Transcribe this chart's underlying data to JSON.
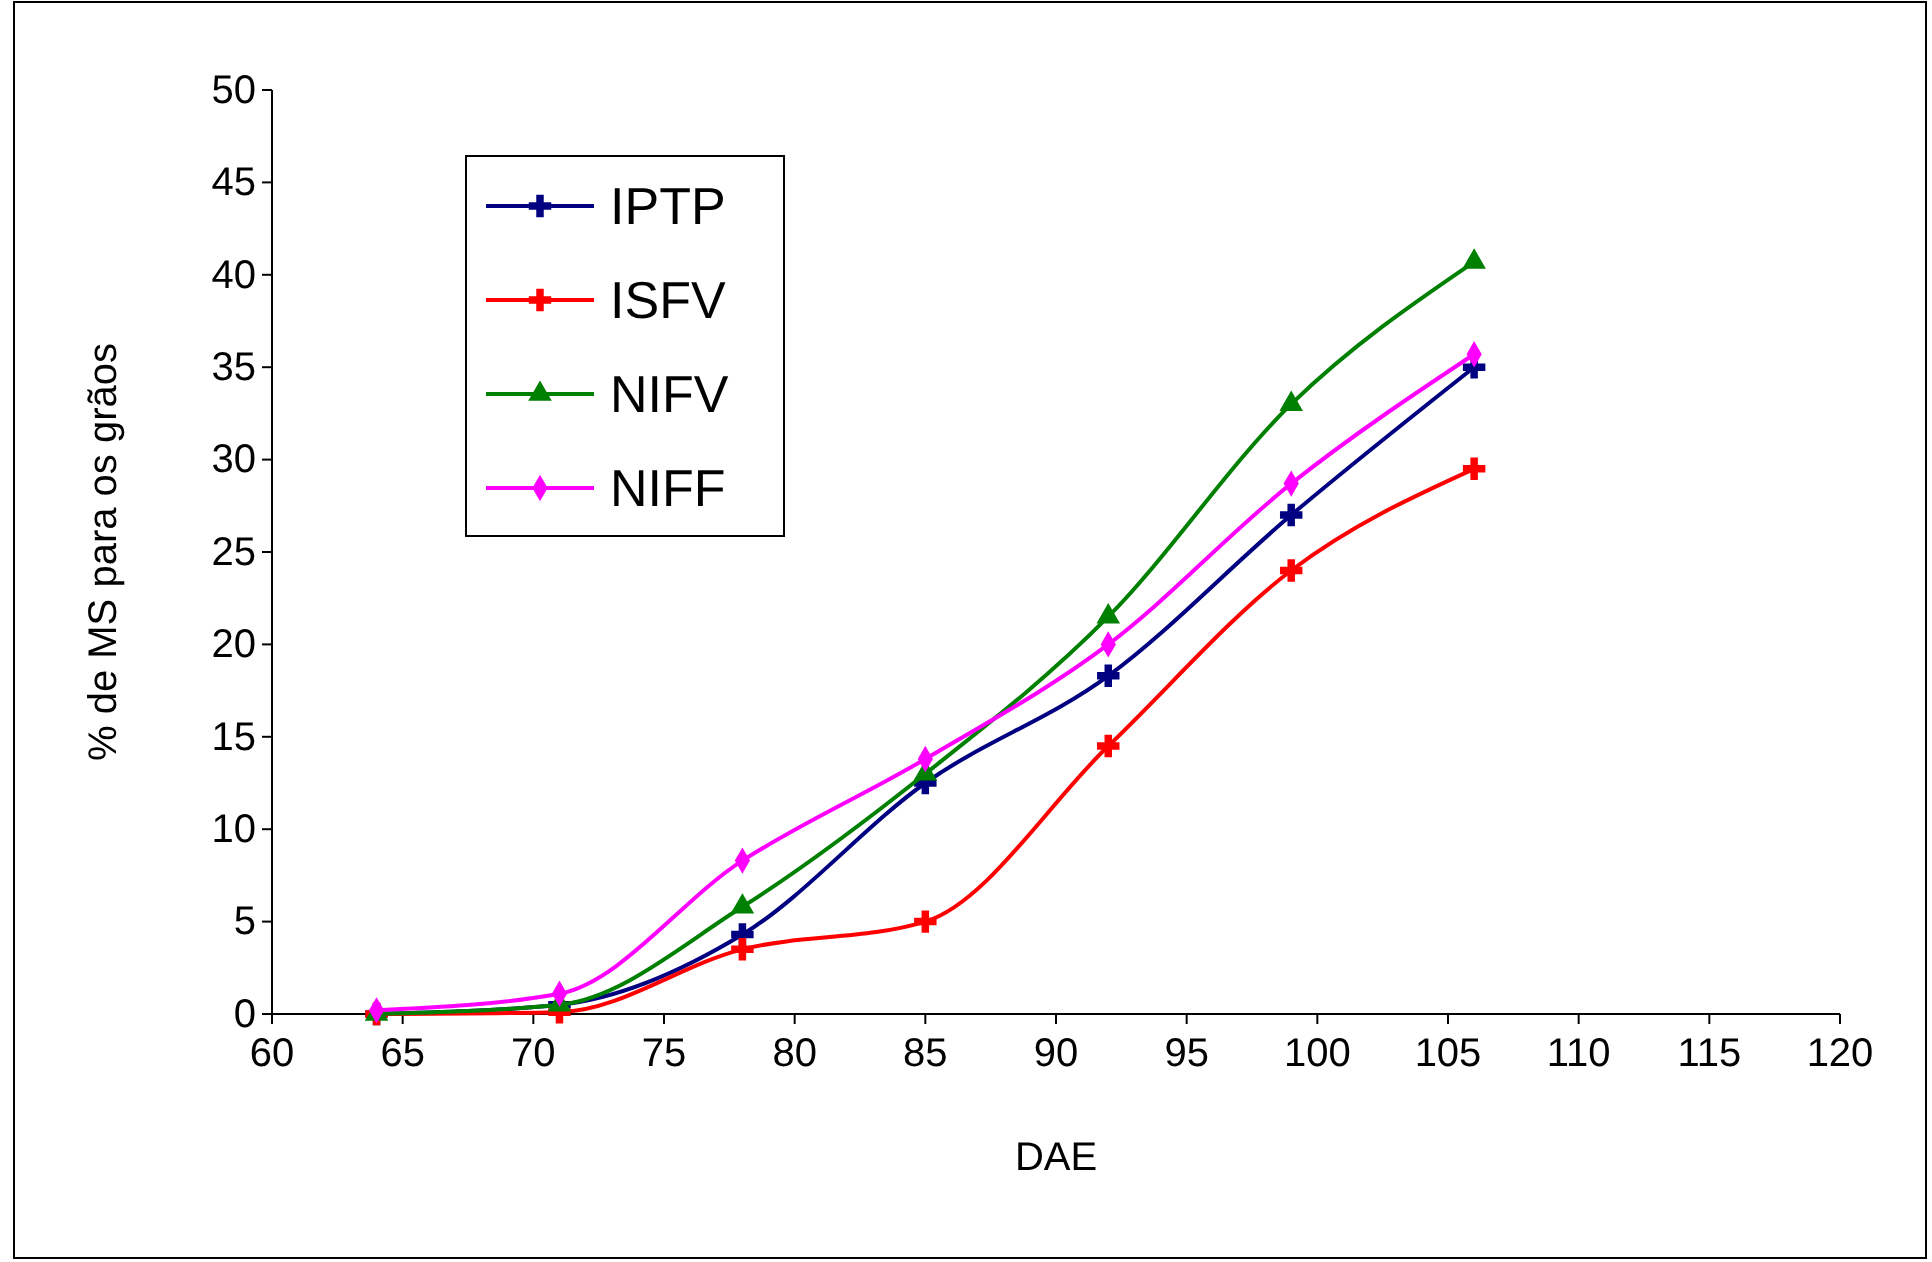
{
  "chart_data": {
    "type": "line",
    "xlabel": "DAE",
    "ylabel": "% de MS para os grãos",
    "x": [
      64,
      71,
      78,
      85,
      92,
      99,
      106
    ],
    "xlim": [
      60,
      120
    ],
    "xticks": [
      60,
      65,
      70,
      75,
      80,
      85,
      90,
      95,
      100,
      105,
      110,
      115,
      120
    ],
    "ylim": [
      0,
      50
    ],
    "yticks": [
      0,
      5,
      10,
      15,
      20,
      25,
      30,
      35,
      40,
      45,
      50
    ],
    "grid": false,
    "legend": "top left",
    "line_style": "solid",
    "series": [
      {
        "name": "IPTP",
        "color": "#000080",
        "marker": "cross",
        "values": [
          0,
          0.5,
          4.3,
          12.5,
          18.3,
          27,
          35
        ]
      },
      {
        "name": "ISFV",
        "color": "#ff0000",
        "marker": "cross",
        "values": [
          0,
          0.1,
          3.5,
          5,
          14.5,
          24,
          29.5
        ]
      },
      {
        "name": "NIFV",
        "color": "#008000",
        "marker": "triangle",
        "values": [
          0,
          0.5,
          5.8,
          13,
          21.5,
          33,
          40.7
        ]
      },
      {
        "name": "NIFF",
        "color": "#ff00ff",
        "marker": "diamond",
        "values": [
          0.2,
          1.1,
          8.3,
          13.8,
          20,
          28.7,
          35.7
        ]
      }
    ]
  }
}
